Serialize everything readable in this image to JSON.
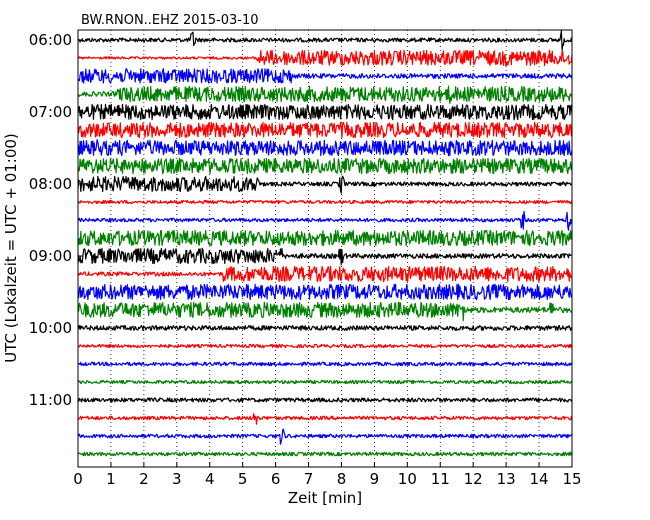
{
  "chart_data": {
    "type": "line",
    "title": "BW.RNON..EHZ 2015-03-10",
    "xlabel": "Zeit  [min]",
    "ylabel": "UTC (Lokalzeit = UTC + 01:00)",
    "xlim": [
      0,
      15
    ],
    "x_ticks": [
      0,
      1,
      2,
      3,
      4,
      5,
      6,
      7,
      8,
      9,
      10,
      11,
      12,
      13,
      14,
      15
    ],
    "y_tick_labels": [
      "06:00",
      "07:00",
      "08:00",
      "09:00",
      "10:00",
      "11:00"
    ],
    "start_time": "06:00",
    "trace_interval_minutes": 15,
    "grid": "vertical dotted",
    "colors": [
      "#000000",
      "#ff0000",
      "#0000ff",
      "#008000"
    ],
    "traces": [
      {
        "start": "06:00",
        "amplitude": 0.25,
        "segments": [],
        "spikes": [
          3.5,
          14.7
        ]
      },
      {
        "start": "06:15",
        "amplitude": 0.15,
        "segments": [
          {
            "from": 5.5,
            "to": 15,
            "amplitude": 0.95
          }
        ],
        "spikes": [
          5.5
        ]
      },
      {
        "start": "06:30",
        "amplitude": 0.3,
        "segments": [
          {
            "from": 0,
            "to": 6.5,
            "amplitude": 0.9
          }
        ],
        "spikes": [
          6.3
        ]
      },
      {
        "start": "06:45",
        "amplitude": 0.3,
        "segments": [
          {
            "from": 1.2,
            "to": 15,
            "amplitude": 0.95
          }
        ],
        "spikes": [
          11.3
        ]
      },
      {
        "start": "07:00",
        "amplitude": 0.95,
        "segments": [],
        "spikes": [
          3.8,
          12.5
        ]
      },
      {
        "start": "07:15",
        "amplitude": 0.95,
        "segments": [],
        "spikes": [
          14.2
        ]
      },
      {
        "start": "07:30",
        "amplitude": 0.95,
        "segments": [],
        "spikes": [
          0.6
        ]
      },
      {
        "start": "07:45",
        "amplitude": 0.95,
        "segments": [],
        "spikes": []
      },
      {
        "start": "08:00",
        "amplitude": 0.25,
        "segments": [
          {
            "from": 0,
            "to": 5.5,
            "amplitude": 0.95
          }
        ],
        "spikes": [
          5.3,
          8.0
        ]
      },
      {
        "start": "08:15",
        "amplitude": 0.2,
        "segments": [],
        "spikes": []
      },
      {
        "start": "08:30",
        "amplitude": 0.22,
        "segments": [],
        "spikes": [
          13.5,
          14.9
        ]
      },
      {
        "start": "08:45",
        "amplitude": 0.95,
        "segments": [],
        "spikes": []
      },
      {
        "start": "09:00",
        "amplitude": 0.3,
        "segments": [
          {
            "from": 0,
            "to": 6.2,
            "amplitude": 0.95
          }
        ],
        "spikes": [
          8.0,
          6.1
        ]
      },
      {
        "start": "09:15",
        "amplitude": 0.25,
        "segments": [
          {
            "from": 4.4,
            "to": 15,
            "amplitude": 0.95
          }
        ],
        "spikes": []
      },
      {
        "start": "09:30",
        "amplitude": 0.95,
        "segments": [],
        "spikes": []
      },
      {
        "start": "09:45",
        "amplitude": 0.35,
        "segments": [
          {
            "from": 0,
            "to": 11.8,
            "amplitude": 0.95
          }
        ],
        "spikes": [
          11.7,
          14.4
        ]
      },
      {
        "start": "10:00",
        "amplitude": 0.3,
        "segments": [],
        "spikes": []
      },
      {
        "start": "10:15",
        "amplitude": 0.2,
        "segments": [],
        "spikes": []
      },
      {
        "start": "10:30",
        "amplitude": 0.22,
        "segments": [],
        "spikes": []
      },
      {
        "start": "10:45",
        "amplitude": 0.2,
        "segments": [],
        "spikes": []
      },
      {
        "start": "11:00",
        "amplitude": 0.25,
        "segments": [],
        "spikes": []
      },
      {
        "start": "11:15",
        "amplitude": 0.22,
        "segments": [],
        "spikes": [
          5.4
        ]
      },
      {
        "start": "11:30",
        "amplitude": 0.22,
        "segments": [],
        "spikes": [
          6.2
        ]
      },
      {
        "start": "11:45",
        "amplitude": 0.22,
        "segments": [],
        "spikes": []
      }
    ]
  }
}
